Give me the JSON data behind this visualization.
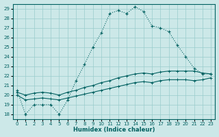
{
  "xlabel": "Humidex (Indice chaleur)",
  "background_color": "#cce8e8",
  "grid_color": "#99cccc",
  "line_color": "#006060",
  "xlim": [
    -0.5,
    23.5
  ],
  "ylim": [
    17.5,
    29.5
  ],
  "xticks": [
    0,
    1,
    2,
    3,
    4,
    5,
    6,
    7,
    8,
    9,
    10,
    11,
    12,
    13,
    14,
    15,
    16,
    17,
    18,
    19,
    20,
    21,
    22,
    23
  ],
  "yticks": [
    18,
    19,
    20,
    21,
    22,
    23,
    24,
    25,
    26,
    27,
    28,
    29
  ],
  "main_line": [
    20.5,
    18.0,
    19.0,
    19.0,
    19.0,
    18.0,
    19.5,
    21.5,
    23.2,
    25.0,
    26.5,
    28.5,
    28.8,
    28.5,
    29.2,
    28.7,
    27.2,
    27.0,
    26.6,
    25.2,
    24.0,
    22.8,
    22.2,
    22.2
  ],
  "upper_line": [
    20.3,
    20.0,
    20.2,
    20.3,
    20.2,
    20.0,
    20.3,
    20.5,
    20.8,
    21.0,
    21.3,
    21.5,
    21.8,
    22.0,
    22.2,
    22.3,
    22.2,
    22.4,
    22.5,
    22.5,
    22.5,
    22.5,
    22.3,
    22.2
  ],
  "lower_line": [
    20.0,
    19.5,
    19.6,
    19.7,
    19.6,
    19.5,
    19.7,
    19.9,
    20.1,
    20.3,
    20.5,
    20.7,
    20.9,
    21.1,
    21.3,
    21.4,
    21.3,
    21.5,
    21.6,
    21.6,
    21.6,
    21.5,
    21.6,
    21.8
  ]
}
